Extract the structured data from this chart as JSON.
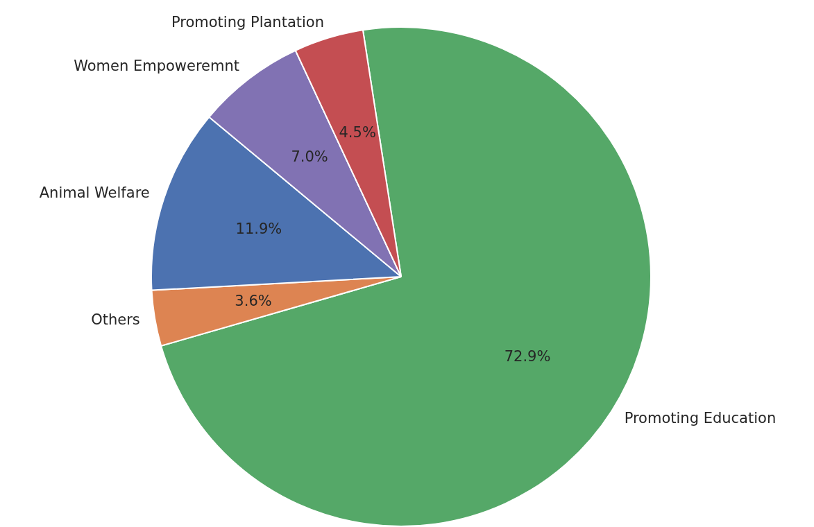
{
  "chart_data": {
    "type": "pie",
    "categories": [
      "Promoting Education",
      "Others",
      "Animal Welfare",
      "Women Empoweremnt",
      "Promoting Plantation"
    ],
    "values": [
      72.9,
      3.6,
      11.9,
      7.0,
      4.5
    ],
    "colors": [
      "#55a868",
      "#dd8452",
      "#4c72b0",
      "#8172b3",
      "#c44e52"
    ],
    "value_labels": [
      "72.9%",
      "3.6%",
      "11.9%",
      "7.0%",
      "4.5%"
    ],
    "legend": false
  }
}
